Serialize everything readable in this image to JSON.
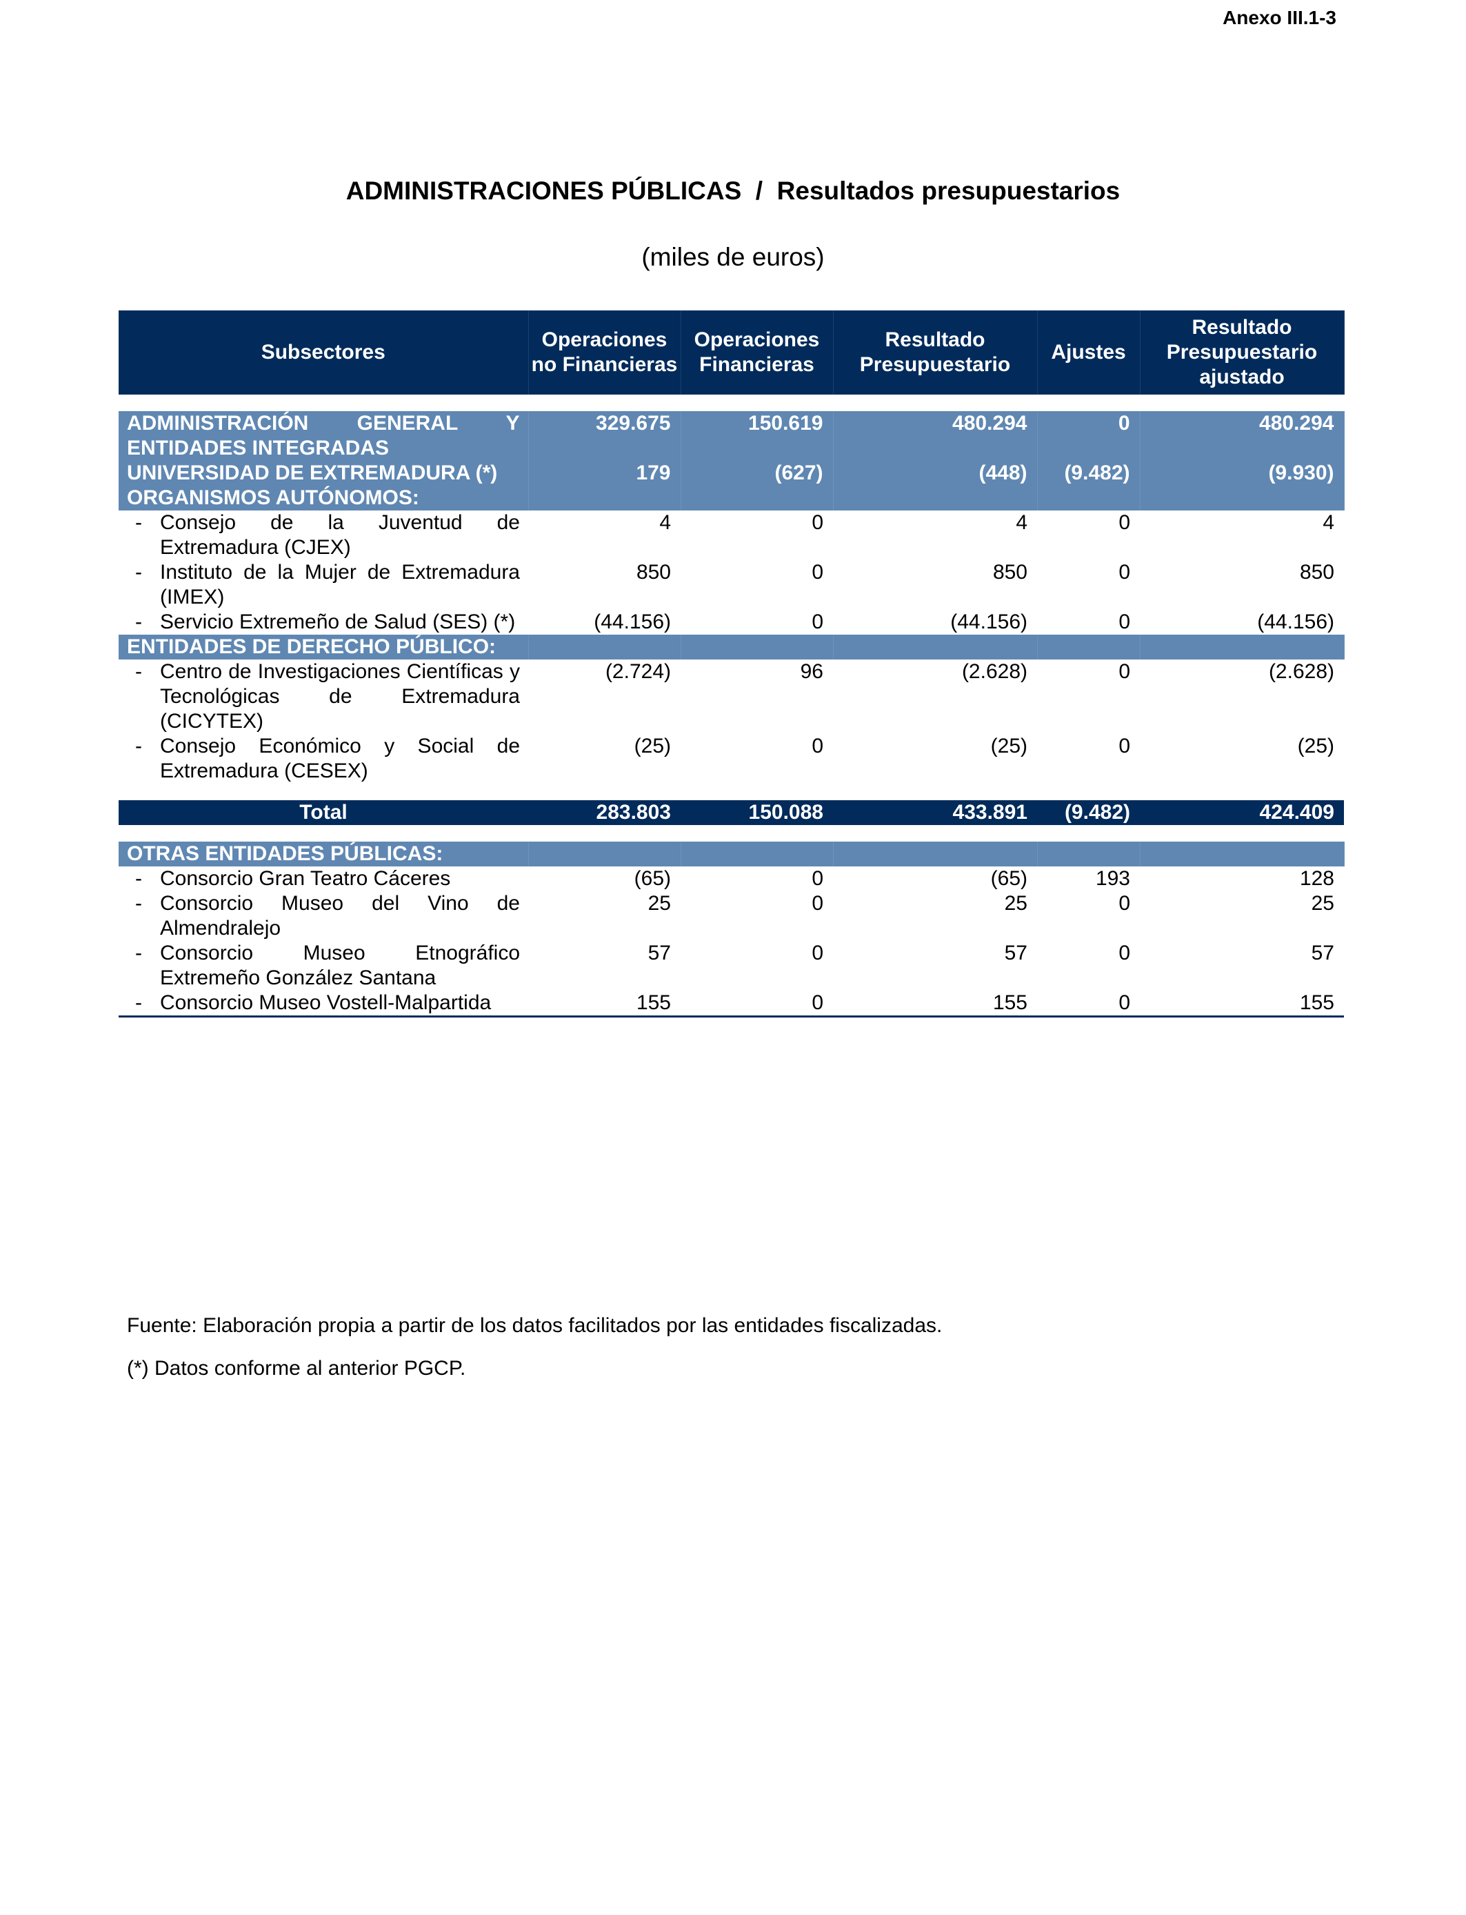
{
  "header": {
    "annex": "Anexo III.1-3"
  },
  "title": "ADMINISTRACIONES PÚBLICAS  /  Resultados presupuestarios",
  "subtitle": "(miles de euros)",
  "table": {
    "columns": [
      "Subsectores",
      "Operaciones no Financieras",
      "Operaciones Financieras",
      "Resultado Presupuestario",
      "Ajustes",
      "Resultado Presupuestario ajustado"
    ],
    "rows": [
      {
        "style": "section",
        "label": "ADMINISTRACIÓN GENERAL Y ENTIDADES INTEGRADAS",
        "values": [
          "329.675",
          "150.619",
          "480.294",
          "0",
          "480.294"
        ]
      },
      {
        "style": "section",
        "label": "UNIVERSIDAD DE EXTREMADURA (*)",
        "values": [
          "179",
          "(627)",
          "(448)",
          "(9.482)",
          "(9.930)"
        ]
      },
      {
        "style": "section",
        "label": "ORGANISMOS AUTÓNOMOS:"
      },
      {
        "style": "item",
        "label": "Consejo de la Juventud de Extremadura (CJEX)",
        "values": [
          "4",
          "0",
          "4",
          "0",
          "4"
        ]
      },
      {
        "style": "item",
        "label": "Instituto de la Mujer de Extremadura (IMEX)",
        "values": [
          "850",
          "0",
          "850",
          "0",
          "850"
        ]
      },
      {
        "style": "item",
        "label": "Servicio Extremeño de Salud (SES) (*)",
        "values": [
          "(44.156)",
          "0",
          "(44.156)",
          "0",
          "(44.156)"
        ]
      },
      {
        "style": "section",
        "label": "ENTIDADES DE DERECHO PÚBLICO:"
      },
      {
        "style": "item",
        "label": "Centro de Investigaciones Científicas y Tecnológicas de Extremadura (CICYTEX)",
        "values": [
          "(2.724)",
          "96",
          "(2.628)",
          "0",
          "(2.628)"
        ]
      },
      {
        "style": "item",
        "label": "Consejo Económico y Social de Extremadura (CESEX)",
        "values": [
          "(25)",
          "0",
          "(25)",
          "0",
          "(25)"
        ]
      },
      {
        "style": "total",
        "label": "Total",
        "values": [
          "283.803",
          "150.088",
          "433.891",
          "(9.482)",
          "424.409"
        ]
      },
      {
        "style": "section",
        "label": "OTRAS ENTIDADES PÚBLICAS:"
      },
      {
        "style": "item",
        "label": "Consorcio Gran Teatro Cáceres",
        "values": [
          "(65)",
          "0",
          "(65)",
          "193",
          "128"
        ]
      },
      {
        "style": "item",
        "label": "Consorcio Museo del Vino de Almendralejo",
        "values": [
          "25",
          "0",
          "25",
          "0",
          "25"
        ]
      },
      {
        "style": "item",
        "label": "Consorcio Museo Etnográfico Extremeño González Santana",
        "values": [
          "57",
          "0",
          "57",
          "0",
          "57"
        ]
      },
      {
        "style": "item",
        "label": "Consorcio Museo Vostell-Malpartida",
        "values": [
          "155",
          "0",
          "155",
          "0",
          "155"
        ]
      }
    ]
  },
  "notes": [
    "Fuente: Elaboración propia a partir de los datos facilitados por las entidades fiscalizadas.",
    "(*) Datos conforme al anterior PGCP."
  ]
}
